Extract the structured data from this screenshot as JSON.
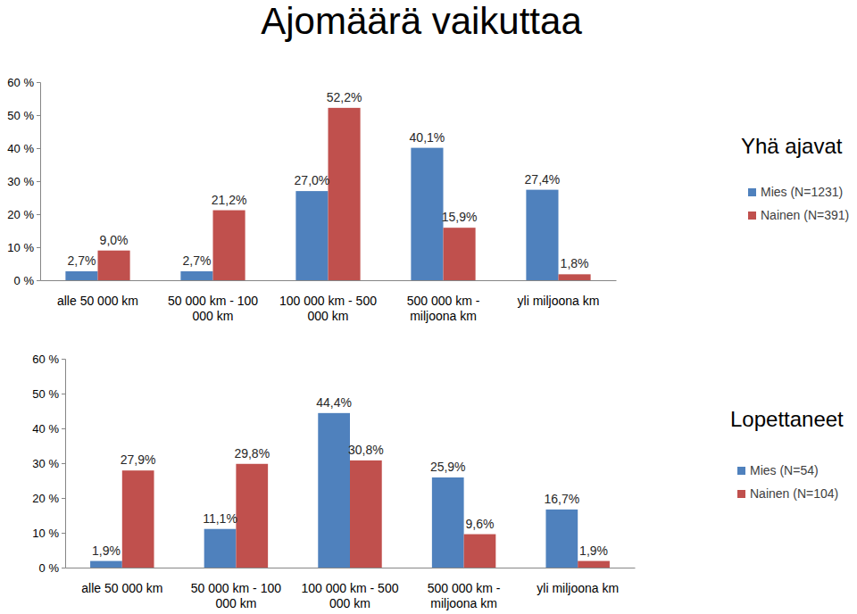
{
  "title": "Ajomäärä vaikuttaa",
  "chart_data": [
    {
      "type": "bar",
      "title": "Yhä ajavat",
      "categories": [
        "alle 50 000 km",
        "50 000 km - 100 000 km",
        "100 000 km - 500 000 km",
        "500 000 km - miljoona km",
        "yli miljoona km"
      ],
      "series": [
        {
          "name": "Mies (N=1231)",
          "color": "#4f81bd",
          "values": [
            2.7,
            2.7,
            27.0,
            40.1,
            27.4
          ],
          "value_labels": [
            "2,7%",
            "2,7%",
            "27,0%",
            "40,1%",
            "27,4%"
          ]
        },
        {
          "name": "Nainen (N=391)",
          "color": "#c0504d",
          "values": [
            9.0,
            21.2,
            52.2,
            15.9,
            1.8
          ],
          "value_labels": [
            "9,0%",
            "21,2%",
            "52,2%",
            "15,9%",
            "1,8%"
          ]
        }
      ],
      "ylim": [
        0,
        60
      ],
      "yticks": [
        {
          "value": 0,
          "label": "0 %"
        },
        {
          "value": 10,
          "label": "10 %"
        },
        {
          "value": 20,
          "label": "20 %"
        },
        {
          "value": 30,
          "label": "30 %"
        },
        {
          "value": 40,
          "label": "40 %"
        },
        {
          "value": 50,
          "label": "50 %"
        },
        {
          "value": 60,
          "label": "60 %"
        }
      ],
      "grid": false,
      "legend": "right",
      "data_labels": true
    },
    {
      "type": "bar",
      "title": "Lopettaneet",
      "categories": [
        "alle 50 000 km",
        "50 000 km - 100 000 km",
        "100 000 km - 500 000 km",
        "500 000 km - miljoona km",
        "yli miljoona km"
      ],
      "series": [
        {
          "name": "Mies (N=54)",
          "color": "#4f81bd",
          "values": [
            1.9,
            11.1,
            44.4,
            25.9,
            16.7
          ],
          "value_labels": [
            "1,9%",
            "11,1%",
            "44,4%",
            "25,9%",
            "16,7%"
          ]
        },
        {
          "name": "Nainen (N=104)",
          "color": "#c0504d",
          "values": [
            27.9,
            29.8,
            30.8,
            9.6,
            1.9
          ],
          "value_labels": [
            "27,9%",
            "29,8%",
            "30,8%",
            "9,6%",
            "1,9%"
          ]
        }
      ],
      "ylim": [
        0,
        60
      ],
      "yticks": [
        {
          "value": 0,
          "label": "0 %"
        },
        {
          "value": 10,
          "label": "10 %"
        },
        {
          "value": 20,
          "label": "20 %"
        },
        {
          "value": 30,
          "label": "30 %"
        },
        {
          "value": 40,
          "label": "40 %"
        },
        {
          "value": 50,
          "label": "50 %"
        },
        {
          "value": 60,
          "label": "60 %"
        }
      ],
      "grid": false,
      "legend": "right",
      "data_labels": true
    }
  ]
}
